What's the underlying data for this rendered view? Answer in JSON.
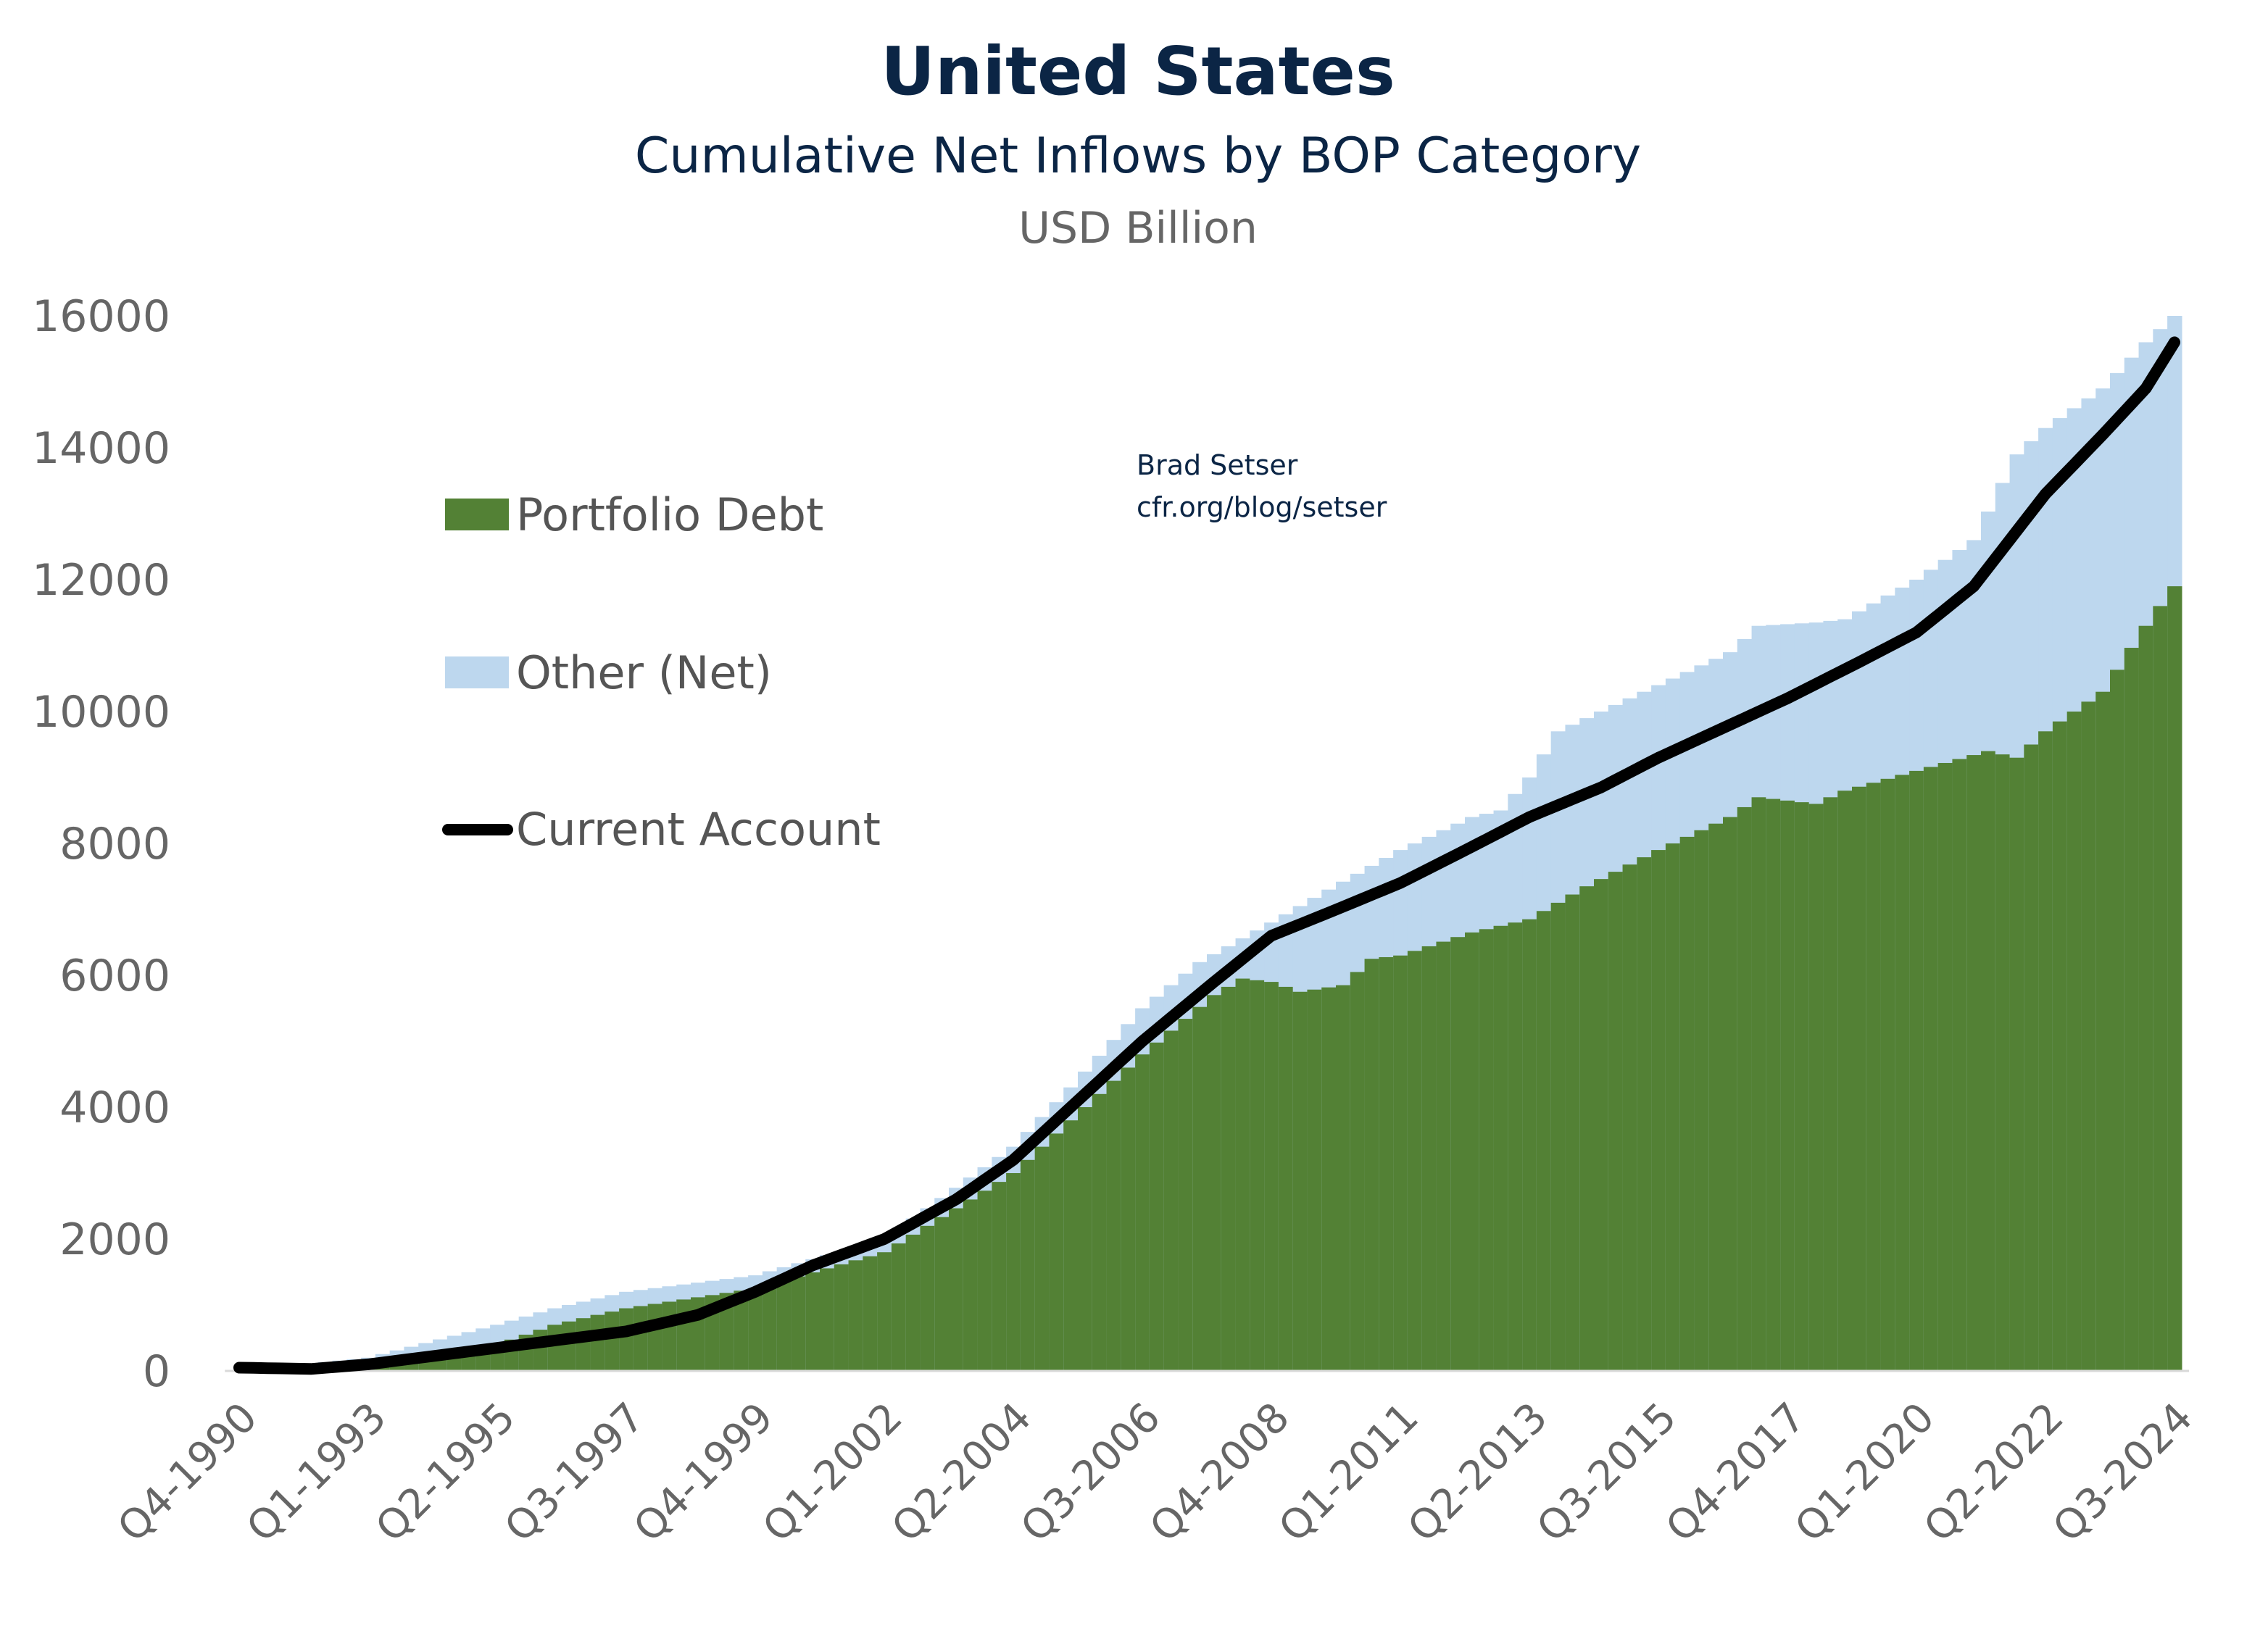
{
  "chart_data": {
    "type": "area",
    "title": "United States",
    "subtitle": "Cumulative Net Inflows by BOP Category",
    "ylabel": "USD Billion",
    "credit": [
      "Brad Setser",
      "cfr.org/blog/setser"
    ],
    "ylim": [
      0,
      16000
    ],
    "yticks": [
      0,
      2000,
      4000,
      6000,
      8000,
      10000,
      12000,
      14000,
      16000
    ],
    "quarter_count": 136,
    "xtick_labels": [
      "Q4-1990",
      "Q1-1993",
      "Q2-1995",
      "Q3-1997",
      "Q4-1999",
      "Q1-2002",
      "Q2-2004",
      "Q3-2006",
      "Q4-2008",
      "Q1-2011",
      "Q2-2013",
      "Q3-2015",
      "Q4-2017",
      "Q1-2020",
      "Q2-2022",
      "Q3-2024"
    ],
    "xtick_every_quarters": 9,
    "legend_placement": "top-left",
    "series": [
      {
        "name": "Portfolio Debt",
        "kind": "stacked-step",
        "color": "#538135",
        "points": [
          [
            0,
            0
          ],
          [
            9,
            50
          ],
          [
            18,
            400
          ],
          [
            22,
            700
          ],
          [
            27,
            950
          ],
          [
            36,
            1250
          ],
          [
            45,
            1800
          ],
          [
            54,
            3000
          ],
          [
            63,
            4800
          ],
          [
            68,
            5700
          ],
          [
            70,
            5950
          ],
          [
            72,
            5900
          ],
          [
            74,
            5750
          ],
          [
            77,
            5850
          ],
          [
            79,
            6250
          ],
          [
            81,
            6300
          ],
          [
            86,
            6650
          ],
          [
            90,
            6850
          ],
          [
            94,
            7350
          ],
          [
            99,
            7900
          ],
          [
            104,
            8400
          ],
          [
            106,
            8700
          ],
          [
            108,
            8650
          ],
          [
            110,
            8600
          ],
          [
            112,
            8800
          ],
          [
            117,
            9100
          ],
          [
            122,
            9400
          ],
          [
            124,
            9300
          ],
          [
            126,
            9700
          ],
          [
            130,
            10300
          ],
          [
            133,
            11300
          ],
          [
            135,
            11900
          ]
        ]
      },
      {
        "name": "Other (Net)",
        "kind": "stacked-step-total",
        "color": "#bdd7ee",
        "points": [
          [
            0,
            0
          ],
          [
            9,
            200
          ],
          [
            18,
            700
          ],
          [
            22,
            950
          ],
          [
            27,
            1200
          ],
          [
            36,
            1450
          ],
          [
            45,
            2000
          ],
          [
            54,
            3400
          ],
          [
            58,
            4300
          ],
          [
            63,
            5500
          ],
          [
            67,
            6200
          ],
          [
            72,
            6800
          ],
          [
            76,
            7300
          ],
          [
            81,
            7900
          ],
          [
            86,
            8400
          ],
          [
            88,
            8500
          ],
          [
            90,
            9000
          ],
          [
            92,
            9700
          ],
          [
            96,
            10100
          ],
          [
            99,
            10400
          ],
          [
            104,
            10900
          ],
          [
            106,
            11300
          ],
          [
            110,
            11350
          ],
          [
            112,
            11400
          ],
          [
            117,
            12000
          ],
          [
            121,
            12600
          ],
          [
            124,
            13900
          ],
          [
            126,
            14300
          ],
          [
            130,
            14900
          ],
          [
            133,
            15600
          ],
          [
            135,
            16000
          ]
        ]
      },
      {
        "name": "Current Account",
        "kind": "line",
        "color": "#000000",
        "points": [
          [
            0,
            50
          ],
          [
            5,
            30
          ],
          [
            9,
            100
          ],
          [
            18,
            350
          ],
          [
            27,
            600
          ],
          [
            32,
            850
          ],
          [
            36,
            1200
          ],
          [
            40,
            1600
          ],
          [
            45,
            2000
          ],
          [
            50,
            2600
          ],
          [
            54,
            3200
          ],
          [
            58,
            4000
          ],
          [
            63,
            5000
          ],
          [
            68,
            5900
          ],
          [
            72,
            6600
          ],
          [
            76,
            6950
          ],
          [
            81,
            7400
          ],
          [
            86,
            7950
          ],
          [
            90,
            8400
          ],
          [
            95,
            8850
          ],
          [
            99,
            9300
          ],
          [
            104,
            9800
          ],
          [
            108,
            10200
          ],
          [
            113,
            10750
          ],
          [
            117,
            11200
          ],
          [
            121,
            11900
          ],
          [
            126,
            13300
          ],
          [
            130,
            14200
          ],
          [
            133,
            14900
          ],
          [
            135,
            15600
          ]
        ]
      }
    ]
  }
}
